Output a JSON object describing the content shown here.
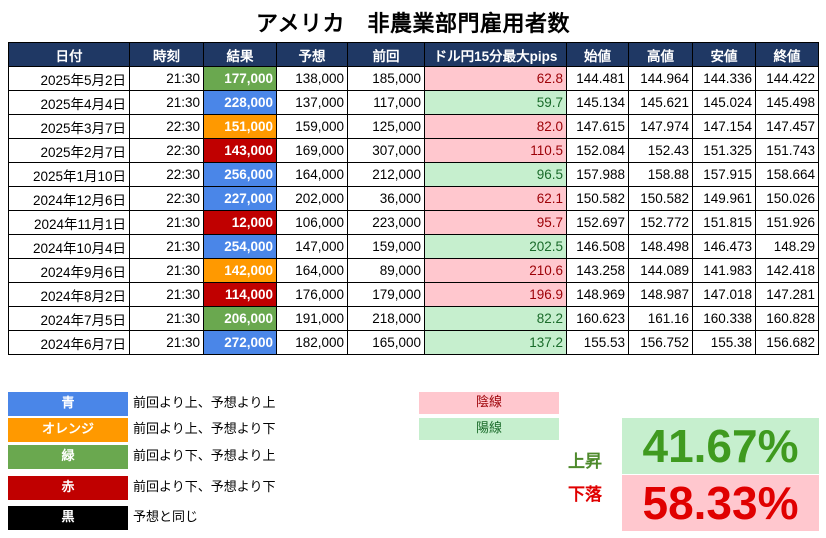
{
  "title": "アメリカ　非農業部門雇用者数",
  "colors": {
    "header": "#1f3864",
    "blue": "#4a86e8",
    "orange": "#ff9900",
    "green": "#6aa84f",
    "red": "#c00000",
    "black": "#000000",
    "bear_bg": "#ffc7ce",
    "bull_bg": "#c6efce"
  },
  "table": {
    "headers": [
      "日付",
      "時刻",
      "結果",
      "予想",
      "前回",
      "ドル円15分最大pips",
      "始値",
      "高値",
      "安値",
      "終値"
    ],
    "rows": [
      {
        "date": "2025年5月2日",
        "time": "21:30",
        "result": "177,000",
        "result_color": "green",
        "forecast": "138,000",
        "previous": "185,000",
        "pips": "62.8",
        "candle": "bear",
        "open": "144.481",
        "high": "144.964",
        "low": "144.336",
        "close": "144.422"
      },
      {
        "date": "2025年4月4日",
        "time": "21:30",
        "result": "228,000",
        "result_color": "blue",
        "forecast": "137,000",
        "previous": "117,000",
        "pips": "59.7",
        "candle": "bull",
        "open": "145.134",
        "high": "145.621",
        "low": "145.024",
        "close": "145.498"
      },
      {
        "date": "2025年3月7日",
        "time": "22:30",
        "result": "151,000",
        "result_color": "orange",
        "forecast": "159,000",
        "previous": "125,000",
        "pips": "82.0",
        "candle": "bear",
        "open": "147.615",
        "high": "147.974",
        "low": "147.154",
        "close": "147.457"
      },
      {
        "date": "2025年2月7日",
        "time": "22:30",
        "result": "143,000",
        "result_color": "red",
        "forecast": "169,000",
        "previous": "307,000",
        "pips": "110.5",
        "candle": "bear",
        "open": "152.084",
        "high": "152.43",
        "low": "151.325",
        "close": "151.743"
      },
      {
        "date": "2025年1月10日",
        "time": "22:30",
        "result": "256,000",
        "result_color": "blue",
        "forecast": "164,000",
        "previous": "212,000",
        "pips": "96.5",
        "candle": "bull",
        "open": "157.988",
        "high": "158.88",
        "low": "157.915",
        "close": "158.664"
      },
      {
        "date": "2024年12月6日",
        "time": "22:30",
        "result": "227,000",
        "result_color": "blue",
        "forecast": "202,000",
        "previous": "36,000",
        "pips": "62.1",
        "candle": "bear",
        "open": "150.582",
        "high": "150.582",
        "low": "149.961",
        "close": "150.026"
      },
      {
        "date": "2024年11月1日",
        "time": "21:30",
        "result": "12,000",
        "result_color": "red",
        "forecast": "106,000",
        "previous": "223,000",
        "pips": "95.7",
        "candle": "bear",
        "open": "152.697",
        "high": "152.772",
        "low": "151.815",
        "close": "151.926"
      },
      {
        "date": "2024年10月4日",
        "time": "21:30",
        "result": "254,000",
        "result_color": "blue",
        "forecast": "147,000",
        "previous": "159,000",
        "pips": "202.5",
        "candle": "bull",
        "open": "146.508",
        "high": "148.498",
        "low": "146.473",
        "close": "148.29"
      },
      {
        "date": "2024年9月6日",
        "time": "21:30",
        "result": "142,000",
        "result_color": "orange",
        "forecast": "164,000",
        "previous": "89,000",
        "pips": "210.6",
        "candle": "bear",
        "open": "143.258",
        "high": "144.089",
        "low": "141.983",
        "close": "142.418"
      },
      {
        "date": "2024年8月2日",
        "time": "21:30",
        "result": "114,000",
        "result_color": "red",
        "forecast": "176,000",
        "previous": "179,000",
        "pips": "196.9",
        "candle": "bear",
        "open": "148.969",
        "high": "148.987",
        "low": "147.018",
        "close": "147.281"
      },
      {
        "date": "2024年7月5日",
        "time": "21:30",
        "result": "206,000",
        "result_color": "green",
        "forecast": "191,000",
        "previous": "218,000",
        "pips": "82.2",
        "candle": "bull",
        "open": "160.623",
        "high": "161.16",
        "low": "160.338",
        "close": "160.828"
      },
      {
        "date": "2024年6月7日",
        "time": "21:30",
        "result": "272,000",
        "result_color": "blue",
        "forecast": "182,000",
        "previous": "165,000",
        "pips": "137.2",
        "candle": "bull",
        "open": "155.53",
        "high": "156.752",
        "low": "155.38",
        "close": "156.682"
      }
    ]
  },
  "legend": [
    {
      "label": "青",
      "color": "blue",
      "description": "前回より上、予想より上"
    },
    {
      "label": "オレンジ",
      "color": "orange",
      "description": "前回より上、予想より下"
    },
    {
      "label": "緑",
      "color": "green",
      "description": "前回より下、予想より上"
    },
    {
      "label": "赤",
      "color": "red",
      "description": "前回より下、予想より下"
    },
    {
      "label": "黒",
      "color": "black",
      "description": "予想と同じ"
    }
  ],
  "candle_legend": {
    "bear_label": "陰線",
    "bull_label": "陽線"
  },
  "ratio": {
    "up_label": "上昇",
    "up_value": "41.67%",
    "down_label": "下落",
    "down_value": "58.33%"
  }
}
